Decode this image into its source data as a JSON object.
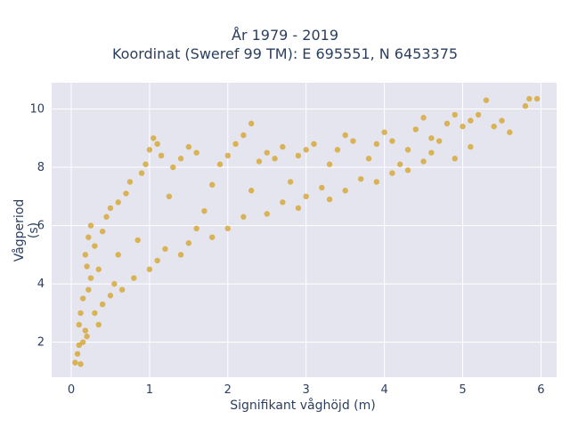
{
  "chart_data": {
    "type": "scatter",
    "title_line1": "År 1979 - 2019",
    "title_line2": "Koordinat (Sweref 99 TM): E 695551, N 6453375",
    "xlabel": "Signifikant våghöjd (m)",
    "ylabel": "Vågperiod (s)",
    "xlim": [
      -0.25,
      6.2
    ],
    "ylim": [
      0.8,
      10.9
    ],
    "x_ticks": [
      0,
      1,
      2,
      3,
      4,
      5,
      6
    ],
    "y_ticks": [
      2,
      4,
      6,
      8,
      10
    ],
    "grid": true,
    "background": "#e5e5f0",
    "marker_color": "#d4a020",
    "marker_opacity": 0.75,
    "series": [
      {
        "points": [
          [
            0.05,
            1.3
          ],
          [
            0.08,
            1.6
          ],
          [
            0.1,
            1.9
          ],
          [
            0.12,
            1.25
          ],
          [
            0.15,
            2.0
          ],
          [
            0.18,
            2.4
          ],
          [
            0.1,
            2.6
          ],
          [
            0.12,
            3.0
          ],
          [
            0.15,
            3.5
          ],
          [
            0.2,
            2.2
          ],
          [
            0.22,
            3.8
          ],
          [
            0.25,
            4.2
          ],
          [
            0.2,
            4.6
          ],
          [
            0.18,
            5.0
          ],
          [
            0.22,
            5.6
          ],
          [
            0.25,
            6.0
          ],
          [
            0.3,
            5.3
          ],
          [
            0.3,
            3.0
          ],
          [
            0.35,
            2.6
          ],
          [
            0.35,
            4.5
          ],
          [
            0.4,
            5.8
          ],
          [
            0.45,
            6.3
          ],
          [
            0.5,
            6.6
          ],
          [
            0.4,
            3.3
          ],
          [
            0.5,
            3.6
          ],
          [
            0.55,
            4.0
          ],
          [
            0.6,
            5.0
          ],
          [
            0.6,
            6.8
          ],
          [
            0.7,
            7.1
          ],
          [
            0.75,
            7.5
          ],
          [
            0.65,
            3.8
          ],
          [
            0.8,
            4.2
          ],
          [
            0.85,
            5.5
          ],
          [
            0.9,
            7.8
          ],
          [
            0.95,
            8.1
          ],
          [
            1.0,
            8.6
          ],
          [
            1.05,
            9.0
          ],
          [
            1.1,
            8.8
          ],
          [
            1.15,
            8.4
          ],
          [
            1.0,
            4.5
          ],
          [
            1.1,
            4.8
          ],
          [
            1.2,
            5.2
          ],
          [
            1.25,
            7.0
          ],
          [
            1.3,
            8.0
          ],
          [
            1.4,
            8.3
          ],
          [
            1.5,
            8.7
          ],
          [
            1.6,
            8.5
          ],
          [
            1.4,
            5.0
          ],
          [
            1.5,
            5.4
          ],
          [
            1.6,
            5.9
          ],
          [
            1.7,
            6.5
          ],
          [
            1.8,
            7.4
          ],
          [
            1.9,
            8.1
          ],
          [
            2.0,
            8.4
          ],
          [
            2.1,
            8.8
          ],
          [
            2.2,
            9.1
          ],
          [
            2.3,
            9.5
          ],
          [
            1.8,
            5.6
          ],
          [
            2.0,
            5.9
          ],
          [
            2.2,
            6.3
          ],
          [
            2.3,
            7.2
          ],
          [
            2.4,
            8.2
          ],
          [
            2.5,
            8.5
          ],
          [
            2.6,
            8.3
          ],
          [
            2.7,
            8.7
          ],
          [
            2.5,
            6.4
          ],
          [
            2.7,
            6.8
          ],
          [
            2.8,
            7.5
          ],
          [
            2.9,
            8.4
          ],
          [
            3.0,
            8.6
          ],
          [
            3.1,
            8.8
          ],
          [
            2.9,
            6.6
          ],
          [
            3.0,
            7.0
          ],
          [
            3.2,
            7.3
          ],
          [
            3.3,
            8.1
          ],
          [
            3.4,
            8.6
          ],
          [
            3.5,
            9.1
          ],
          [
            3.6,
            8.9
          ],
          [
            3.3,
            6.9
          ],
          [
            3.5,
            7.2
          ],
          [
            3.7,
            7.6
          ],
          [
            3.8,
            8.3
          ],
          [
            3.9,
            8.8
          ],
          [
            4.0,
            9.2
          ],
          [
            4.1,
            8.9
          ],
          [
            3.9,
            7.5
          ],
          [
            4.1,
            7.8
          ],
          [
            4.2,
            8.1
          ],
          [
            4.3,
            8.6
          ],
          [
            4.4,
            9.3
          ],
          [
            4.5,
            9.7
          ],
          [
            4.6,
            9.0
          ],
          [
            4.3,
            7.9
          ],
          [
            4.5,
            8.2
          ],
          [
            4.6,
            8.5
          ],
          [
            4.7,
            8.9
          ],
          [
            4.8,
            9.5
          ],
          [
            4.9,
            9.8
          ],
          [
            5.0,
            9.4
          ],
          [
            5.1,
            9.6
          ],
          [
            5.2,
            9.8
          ],
          [
            5.3,
            10.3
          ],
          [
            5.4,
            9.4
          ],
          [
            5.5,
            9.6
          ],
          [
            5.6,
            9.2
          ],
          [
            5.8,
            10.1
          ],
          [
            5.85,
            10.35
          ],
          [
            5.95,
            10.35
          ],
          [
            4.9,
            8.3
          ],
          [
            5.1,
            8.7
          ]
        ]
      }
    ]
  }
}
